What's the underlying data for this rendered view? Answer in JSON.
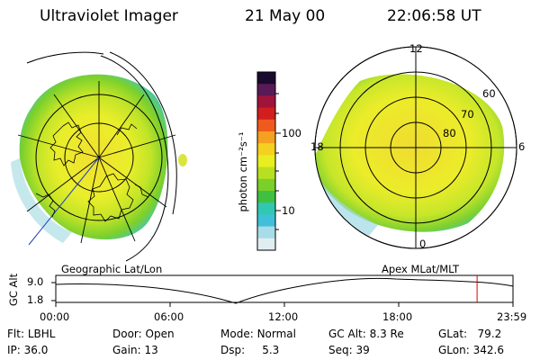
{
  "header": {
    "title": "Ultraviolet Imager",
    "date": "21 May 00",
    "time": "22:06:58 UT"
  },
  "left_panel": {
    "label": "Geographic Lat/Lon"
  },
  "right_panel": {
    "label": "Apex MLat/MLT",
    "mlt_labels": {
      "top": "12",
      "bottom": "0",
      "left": "18",
      "right": "6"
    },
    "lat_labels": [
      "60",
      "70",
      "80"
    ]
  },
  "colorbar": {
    "unit": "photon cm⁻²s⁻¹",
    "ticks": [
      "100",
      "10"
    ],
    "colors": [
      "#1a0a2e",
      "#5a1a55",
      "#a0143c",
      "#d21e1e",
      "#f05a1e",
      "#f5a020",
      "#f5d020",
      "#e8ee20",
      "#b8e020",
      "#7ad028",
      "#40c040",
      "#30c8b0",
      "#40c0d8",
      "#a8dce8",
      "#e0eef2"
    ]
  },
  "timeline": {
    "ylabel": "GC Alt",
    "ymax": "9.0",
    "ymin": "1.8",
    "xticks": [
      "00:00",
      "06:00",
      "12:00",
      "18:00",
      "23:59"
    ],
    "marker_time_hours": 22.1
  },
  "info": {
    "flt_label": "Flt:",
    "flt": "LBHL",
    "ip_label": "IP:",
    "ip": "36.0",
    "door_label": "Door:",
    "door": "Open",
    "gain_label": "Gain:",
    "gain": "13",
    "mode_label": "Mode:",
    "mode": "Normal",
    "dsp_label": "Dsp:",
    "dsp": "5.3",
    "gcalt_label": "GC Alt:",
    "gcalt": "8.3 Re",
    "seq_label": "Seq:",
    "seq": "39",
    "glat_label": "GLat:",
    "glat": "79.2",
    "glon_label": "GLon:",
    "glon": "342.6"
  }
}
